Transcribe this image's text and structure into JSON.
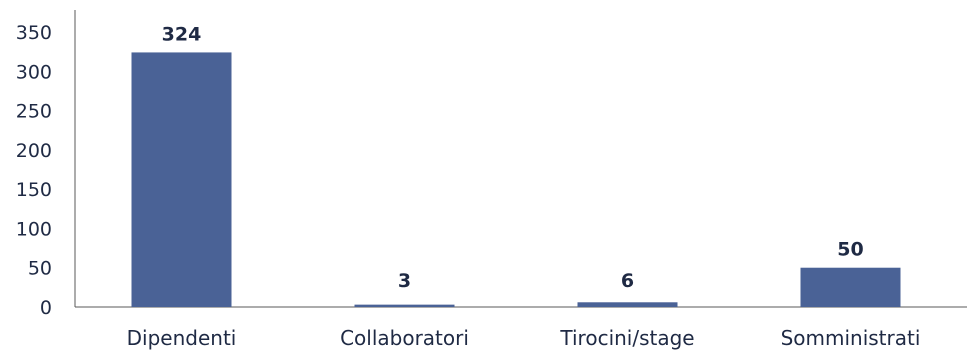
{
  "chart_data": {
    "type": "bar",
    "title": "",
    "xlabel": "",
    "ylabel": "",
    "categories": [
      "Dipendenti",
      "Collaboratori",
      "Tirocini/stage",
      "Somministrati"
    ],
    "values": [
      324,
      3,
      6,
      50
    ],
    "data_labels": [
      "324",
      "3",
      "6",
      "50"
    ],
    "ylim": [
      0,
      350
    ],
    "yticks": [
      0,
      50,
      100,
      150,
      200,
      250,
      300,
      350
    ],
    "grid": false,
    "legend": "none",
    "bar_color": "#4a6296",
    "text_color": "#1f2a44"
  }
}
